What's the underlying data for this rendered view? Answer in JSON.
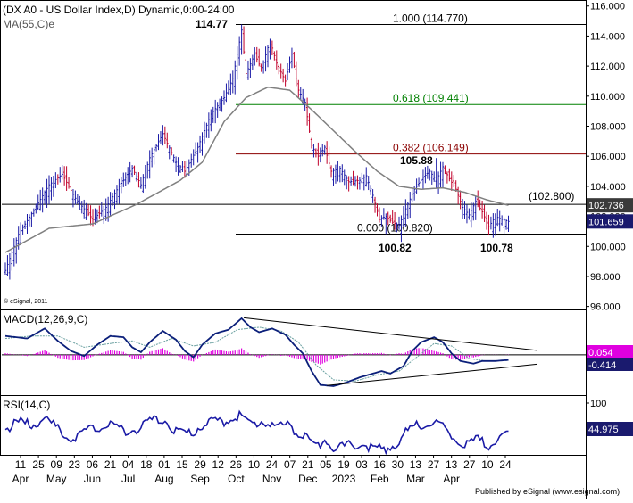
{
  "header": {
    "title": "(DX A0 - US Dollar Index,D) Dynamic,0:00-24:00",
    "ma_label": "MA(55,C)e",
    "watermark": "© eSignal, 2011"
  },
  "footer": {
    "credit": "Published by eSignal (www.esignal.com)"
  },
  "colors": {
    "bull": "#1a1aa6",
    "bear": "#c0002a",
    "ma": "#808080",
    "macd": "#0b1f7a",
    "signal": "#6aa0a0",
    "histogram": "#e000e0",
    "rsi": "#1a1aa6",
    "fib_1000": "#000000",
    "fib_618": "#008000",
    "fib_382": "#8b0000",
    "fib_000": "#000000",
    "price_box": "#1a1a6e",
    "macd_box": "#e000e0",
    "rsi_box": "#1a1a6e"
  },
  "chart_data": [
    {
      "panel": "price",
      "type": "ohlc",
      "title": "(DX A0 - US Dollar Index,D) Dynamic,0:00-24:00",
      "y_ticks": [
        "116.000",
        "114.000",
        "112.000",
        "110.000",
        "108.000",
        "106.000",
        "104.000",
        "102.000",
        "100.000",
        "98.000",
        "96.000"
      ],
      "ylim": [
        95.8,
        116.4
      ],
      "x_labels": [
        {
          "day": "11",
          "month": "Apr"
        },
        {
          "day": "25",
          "month": ""
        },
        {
          "day": "09",
          "month": "May"
        },
        {
          "day": "23",
          "month": ""
        },
        {
          "day": "06",
          "month": "Jun"
        },
        {
          "day": "21",
          "month": ""
        },
        {
          "day": "04",
          "month": "Jul"
        },
        {
          "day": "18",
          "month": ""
        },
        {
          "day": "01",
          "month": "Aug"
        },
        {
          "day": "15",
          "month": ""
        },
        {
          "day": "29",
          "month": "Sep"
        },
        {
          "day": "12",
          "month": ""
        },
        {
          "day": "26",
          "month": "Oct"
        },
        {
          "day": "10",
          "month": ""
        },
        {
          "day": "24",
          "month": "Nov"
        },
        {
          "day": "07",
          "month": ""
        },
        {
          "day": "21",
          "month": "Dec"
        },
        {
          "day": "05",
          "month": ""
        },
        {
          "day": "19",
          "month": "2023"
        },
        {
          "day": "03",
          "month": ""
        },
        {
          "day": "16",
          "month": "Feb"
        },
        {
          "day": "30",
          "month": ""
        },
        {
          "day": "13",
          "month": "Mar"
        },
        {
          "day": "27",
          "month": ""
        },
        {
          "day": "13",
          "month": "Apr"
        },
        {
          "day": "27",
          "month": ""
        },
        {
          "day": "10",
          "month": ""
        },
        {
          "day": "24",
          "month": ""
        }
      ],
      "price_anchors": [
        [
          0,
          98.4
        ],
        [
          6,
          100.8
        ],
        [
          13,
          102.4
        ],
        [
          20,
          104.1
        ],
        [
          26,
          104.8
        ],
        [
          32,
          103.2
        ],
        [
          40,
          101.8
        ],
        [
          46,
          102.6
        ],
        [
          52,
          104.0
        ],
        [
          58,
          105.2
        ],
        [
          62,
          104.1
        ],
        [
          66,
          105.9
        ],
        [
          72,
          107.5
        ],
        [
          78,
          105.6
        ],
        [
          82,
          105.0
        ],
        [
          88,
          106.6
        ],
        [
          94,
          108.8
        ],
        [
          100,
          109.9
        ],
        [
          104,
          111.2
        ],
        [
          108,
          114.4
        ],
        [
          110,
          111.5
        ],
        [
          114,
          112.8
        ],
        [
          117,
          111.8
        ],
        [
          121,
          113.7
        ],
        [
          124,
          112.2
        ],
        [
          128,
          111.0
        ],
        [
          131,
          112.8
        ],
        [
          134,
          110.4
        ],
        [
          137,
          109.6
        ],
        [
          140,
          106.7
        ],
        [
          143,
          106.0
        ],
        [
          146,
          106.6
        ],
        [
          149,
          105.0
        ],
        [
          153,
          105.2
        ],
        [
          157,
          104.3
        ],
        [
          162,
          104.4
        ],
        [
          165,
          104.7
        ],
        [
          168,
          103.4
        ],
        [
          171,
          101.8
        ],
        [
          174,
          102.0
        ],
        [
          177,
          101.6
        ],
        [
          180,
          101.4
        ],
        [
          183,
          102.5
        ],
        [
          187,
          103.8
        ],
        [
          191,
          104.6
        ],
        [
          194,
          105.0
        ],
        [
          197,
          104.4
        ],
        [
          200,
          105.3
        ],
        [
          203,
          104.5
        ],
        [
          206,
          103.8
        ],
        [
          209,
          102.6
        ],
        [
          212,
          102.1
        ],
        [
          215,
          103.0
        ],
        [
          218,
          102.3
        ],
        [
          221,
          101.3
        ],
        [
          224,
          102.0
        ],
        [
          227,
          101.8
        ],
        [
          230,
          101.659
        ]
      ],
      "price_spikes": [
        [
          108,
          114.77
        ],
        [
          174,
          100.82
        ],
        [
          197,
          105.88
        ],
        [
          221,
          100.78
        ]
      ],
      "ma_anchors": [
        [
          0,
          99.6
        ],
        [
          20,
          101.2
        ],
        [
          40,
          101.5
        ],
        [
          60,
          102.8
        ],
        [
          80,
          104.4
        ],
        [
          90,
          105.6
        ],
        [
          100,
          108.3
        ],
        [
          110,
          109.9
        ],
        [
          120,
          110.6
        ],
        [
          130,
          110.4
        ],
        [
          140,
          109.1
        ],
        [
          150,
          107.7
        ],
        [
          160,
          106.3
        ],
        [
          170,
          105.0
        ],
        [
          180,
          104.0
        ],
        [
          190,
          103.8
        ],
        [
          200,
          103.9
        ],
        [
          210,
          103.6
        ],
        [
          220,
          103.1
        ],
        [
          230,
          102.736
        ]
      ],
      "fib_levels": [
        {
          "label": "1.000 (114.770)",
          "value": 114.77,
          "ratio": "1.000",
          "color_key": "fib_1000"
        },
        {
          "label": "0.618 (109.441)",
          "value": 109.441,
          "ratio": "0.618",
          "color_key": "fib_618"
        },
        {
          "label": "0.382 (106.149)",
          "value": 106.149,
          "ratio": "0.382",
          "color_key": "fib_382"
        },
        {
          "label": "0.000 (100.820)",
          "value": 100.82,
          "ratio": "0.000",
          "color_key": "fib_000"
        }
      ],
      "horizontal_line": {
        "label": "(102.800)",
        "value": 102.8
      },
      "annotations": [
        {
          "text": "114.77",
          "value": 114.77
        },
        {
          "text": "105.88",
          "value": 105.88
        },
        {
          "text": "100.82",
          "value": 100.82
        },
        {
          "text": "100.78",
          "value": 100.78
        }
      ],
      "last_values": [
        {
          "text": "102.736",
          "value": 102.736,
          "bg": "#3a3a3a"
        },
        {
          "text": "101.659",
          "value": 101.659,
          "bg": "#1a1a6e"
        }
      ]
    },
    {
      "panel": "macd",
      "type": "line",
      "title": "MACD(12,26,9,C)",
      "ylim": [
        -3.0,
        3.4
      ],
      "macd_anchors": [
        [
          0,
          1.5
        ],
        [
          10,
          1.3
        ],
        [
          18,
          2.1
        ],
        [
          24,
          1.1
        ],
        [
          30,
          0.3
        ],
        [
          36,
          -0.1
        ],
        [
          42,
          0.8
        ],
        [
          48,
          1.5
        ],
        [
          54,
          1.4
        ],
        [
          58,
          0.6
        ],
        [
          62,
          0.2
        ],
        [
          66,
          1.0
        ],
        [
          72,
          1.9
        ],
        [
          78,
          1.2
        ],
        [
          82,
          0.3
        ],
        [
          86,
          -0.2
        ],
        [
          90,
          0.8
        ],
        [
          96,
          1.7
        ],
        [
          102,
          2.0
        ],
        [
          108,
          2.9
        ],
        [
          112,
          2.2
        ],
        [
          116,
          1.8
        ],
        [
          122,
          2.1
        ],
        [
          128,
          1.6
        ],
        [
          132,
          0.8
        ],
        [
          136,
          0.1
        ],
        [
          140,
          -1.3
        ],
        [
          144,
          -2.4
        ],
        [
          150,
          -2.5
        ],
        [
          156,
          -2.2
        ],
        [
          162,
          -1.8
        ],
        [
          168,
          -1.5
        ],
        [
          172,
          -1.3
        ],
        [
          176,
          -1.5
        ],
        [
          182,
          -0.9
        ],
        [
          186,
          0.3
        ],
        [
          190,
          1.0
        ],
        [
          196,
          1.4
        ],
        [
          200,
          1.0
        ],
        [
          204,
          0.1
        ],
        [
          208,
          -0.5
        ],
        [
          214,
          -0.7
        ],
        [
          218,
          -0.5
        ],
        [
          224,
          -0.5
        ],
        [
          230,
          -0.414
        ]
      ],
      "signal_anchors": [
        [
          0,
          1.3
        ],
        [
          12,
          1.5
        ],
        [
          24,
          1.5
        ],
        [
          36,
          0.6
        ],
        [
          48,
          0.9
        ],
        [
          58,
          1.1
        ],
        [
          66,
          0.6
        ],
        [
          76,
          1.3
        ],
        [
          86,
          0.7
        ],
        [
          96,
          1.0
        ],
        [
          106,
          2.0
        ],
        [
          116,
          2.2
        ],
        [
          126,
          1.9
        ],
        [
          134,
          1.0
        ],
        [
          142,
          -0.8
        ],
        [
          150,
          -2.0
        ],
        [
          160,
          -2.1
        ],
        [
          170,
          -1.6
        ],
        [
          180,
          -1.3
        ],
        [
          188,
          -0.2
        ],
        [
          196,
          0.9
        ],
        [
          204,
          0.7
        ],
        [
          212,
          -0.3
        ],
        [
          220,
          -0.5
        ],
        [
          230,
          -0.45
        ]
      ],
      "trendlines": [
        {
          "from": [
            109,
            2.95
          ],
          "to": [
            243,
            0.35
          ]
        },
        {
          "from": [
            147,
            -2.45
          ],
          "to": [
            243,
            -0.75
          ]
        }
      ],
      "last_values": [
        {
          "text": "0.054",
          "value": 0.054,
          "bg": "#e000e0"
        },
        {
          "text": "-0.414",
          "value": -0.414,
          "bg": "#1a1a6e"
        }
      ]
    },
    {
      "panel": "rsi",
      "type": "line",
      "title": "RSI(14,C)",
      "y_ticks": [
        "100"
      ],
      "ylim": [
        0,
        100
      ],
      "rsi_anchors": [
        [
          0,
          52
        ],
        [
          6,
          60
        ],
        [
          12,
          56
        ],
        [
          18,
          64
        ],
        [
          24,
          52
        ],
        [
          30,
          40
        ],
        [
          36,
          48
        ],
        [
          42,
          54
        ],
        [
          48,
          58
        ],
        [
          54,
          50
        ],
        [
          60,
          52
        ],
        [
          66,
          60
        ],
        [
          72,
          64
        ],
        [
          78,
          50
        ],
        [
          84,
          46
        ],
        [
          90,
          56
        ],
        [
          96,
          62
        ],
        [
          100,
          60
        ],
        [
          104,
          66
        ],
        [
          108,
          68
        ],
        [
          112,
          56
        ],
        [
          118,
          62
        ],
        [
          124,
          54
        ],
        [
          130,
          58
        ],
        [
          134,
          44
        ],
        [
          138,
          42
        ],
        [
          142,
          30
        ],
        [
          146,
          40
        ],
        [
          150,
          30
        ],
        [
          156,
          32
        ],
        [
          162,
          34
        ],
        [
          168,
          30
        ],
        [
          174,
          28
        ],
        [
          178,
          34
        ],
        [
          184,
          50
        ],
        [
          188,
          56
        ],
        [
          194,
          60
        ],
        [
          198,
          58
        ],
        [
          202,
          48
        ],
        [
          206,
          38
        ],
        [
          210,
          34
        ],
        [
          216,
          40
        ],
        [
          220,
          32
        ],
        [
          224,
          38
        ],
        [
          230,
          44.975
        ]
      ],
      "last_values": [
        {
          "text": "44.975",
          "value": 44.975,
          "bg": "#1a1a6e"
        }
      ]
    }
  ]
}
